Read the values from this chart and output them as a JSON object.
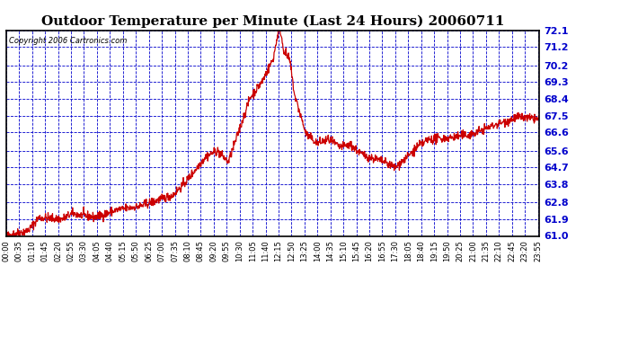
{
  "title": "Outdoor Temperature per Minute (Last 24 Hours) 20060711",
  "copyright_text": "Copyright 2006 Cartronics.com",
  "background_color": "#ffffff",
  "plot_bg_color": "#ffffff",
  "line_color": "#cc0000",
  "grid_color": "#0000cc",
  "border_color": "#000000",
  "title_color": "#000000",
  "copyright_color": "#000000",
  "y_min": 61.0,
  "y_max": 72.1,
  "yticks": [
    61.0,
    61.9,
    62.8,
    63.8,
    64.7,
    65.6,
    66.6,
    67.5,
    68.4,
    69.3,
    70.2,
    71.2,
    72.1
  ],
  "num_points": 1440
}
